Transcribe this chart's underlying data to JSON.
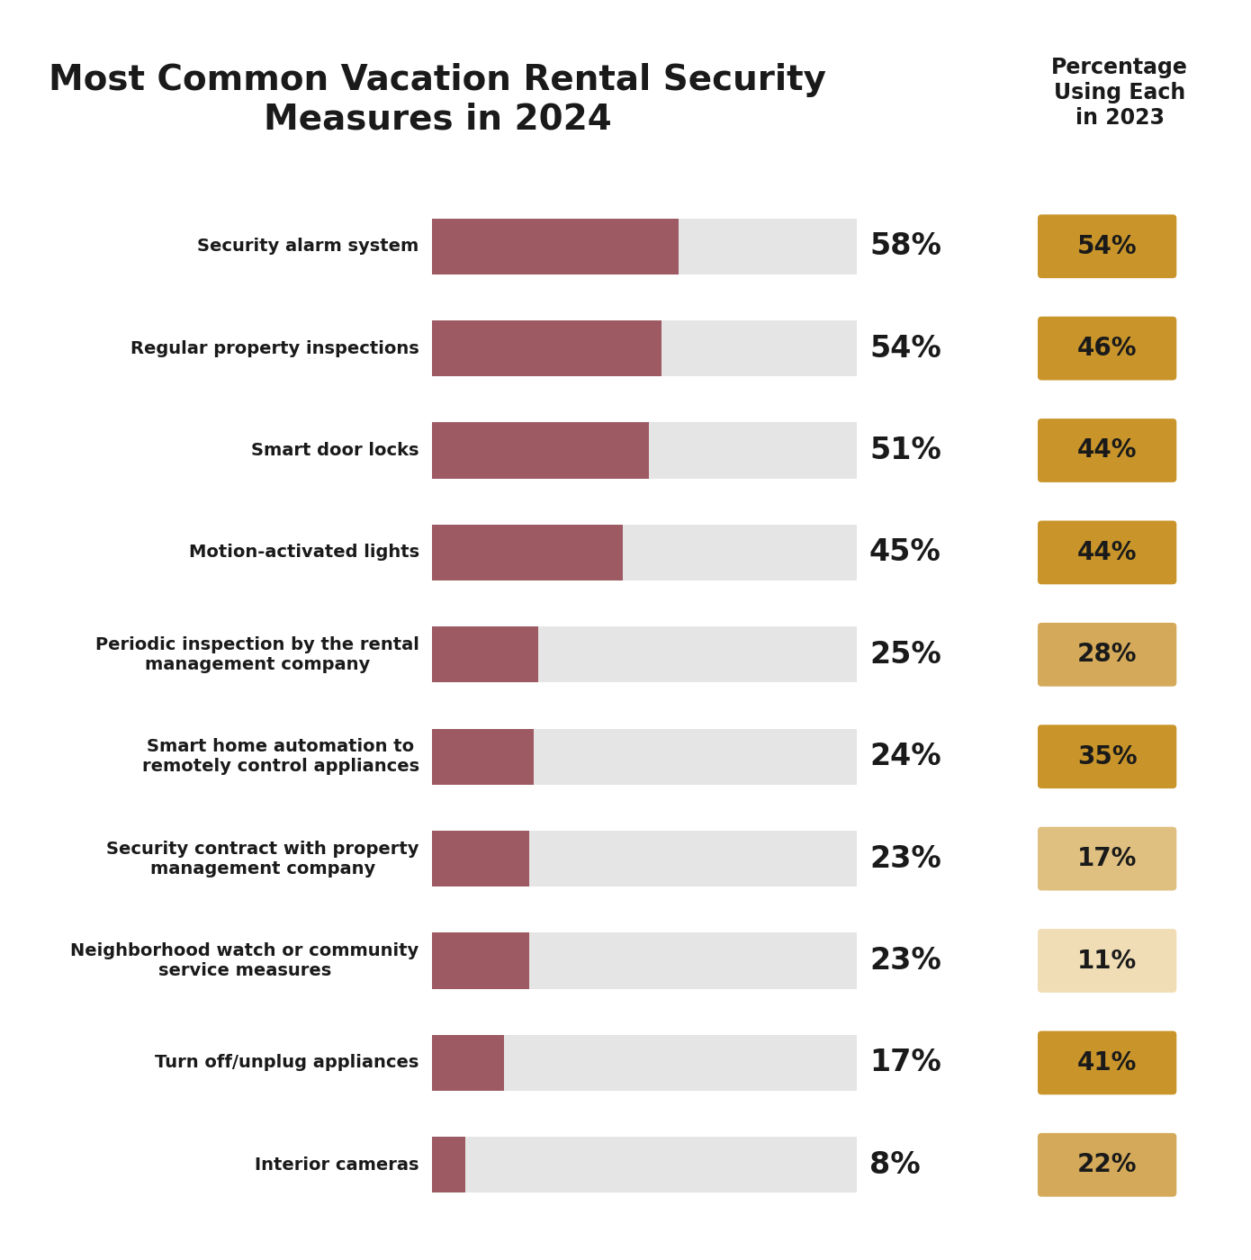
{
  "title": "Most Common Vacation Rental Security\nMeasures in 2024",
  "col_header": "Percentage\nUsing Each\nin 2023",
  "categories": [
    "Security alarm system",
    "Regular property inspections",
    "Smart door locks",
    "Motion-activated lights",
    "Periodic inspection by the rental\nmanagement company",
    "Smart home automation to\nremotely control appliances",
    "Security contract with property\nmanagement company",
    "Neighborhood watch or community\nservice measures",
    "Turn off/unplug appliances",
    "Interior cameras"
  ],
  "values_2024": [
    58,
    54,
    51,
    45,
    25,
    24,
    23,
    23,
    17,
    8
  ],
  "values_2023": [
    54,
    46,
    44,
    44,
    28,
    35,
    17,
    11,
    41,
    22
  ],
  "bar_color": "#9e5a63",
  "bg_bar_color": "#e5e5e5",
  "badge_colors": [
    "#c9952a",
    "#c9952a",
    "#c9952a",
    "#c9952a",
    "#d4aa5a",
    "#c9952a",
    "#dfc080",
    "#f0ddb5",
    "#c9952a",
    "#d4aa5a"
  ],
  "background_color": "#ffffff",
  "title_color": "#1a1a1a",
  "label_color": "#1a1a1a",
  "value_color": "#1a1a1a",
  "max_bar_pct": 65
}
